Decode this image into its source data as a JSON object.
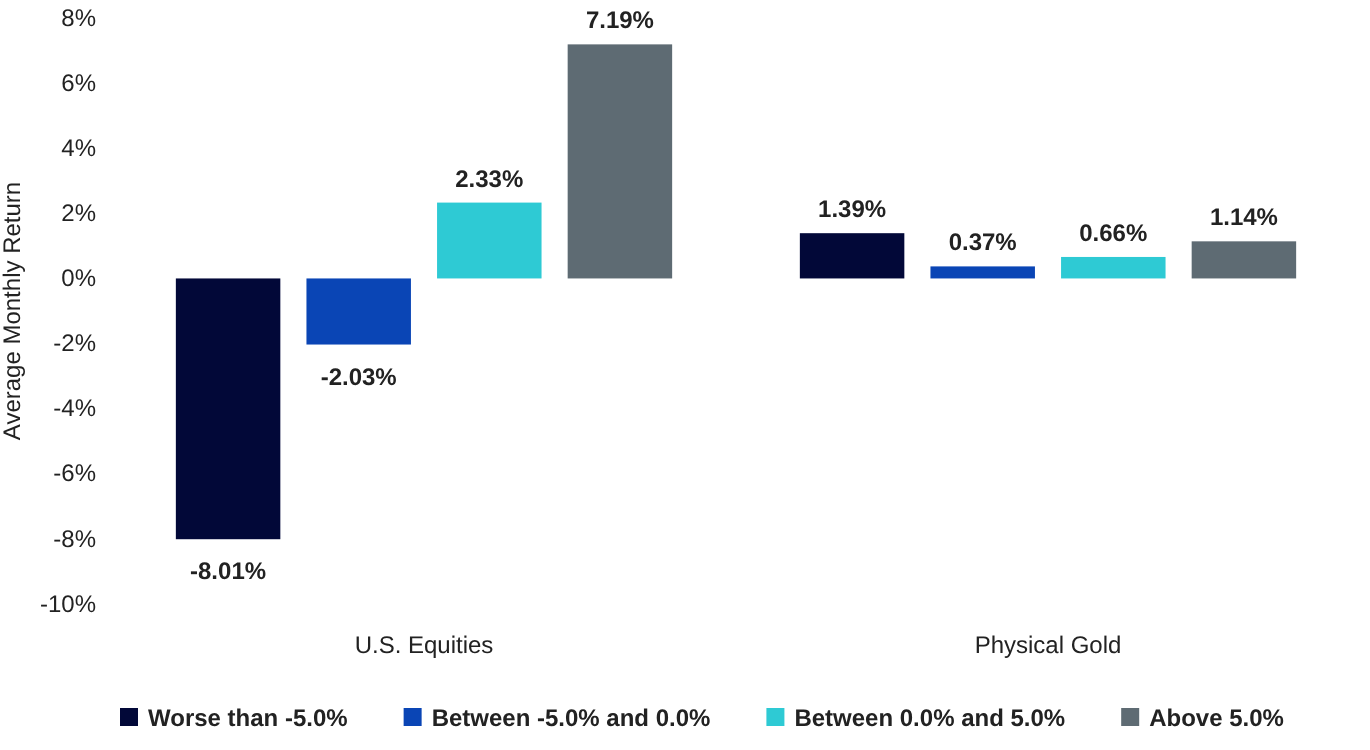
{
  "chart_data": {
    "type": "bar",
    "ylabel": "Average Monthly Return",
    "categories": [
      "U.S. Equities",
      "Physical Gold"
    ],
    "series": [
      {
        "name": "Worse than -5.0%",
        "color": "#020838",
        "values": [
          -8.01,
          1.39
        ],
        "value_labels": [
          "-8.01%",
          "1.39%"
        ]
      },
      {
        "name": "Between -5.0% and 0.0%",
        "color": "#0a45b5",
        "values": [
          -2.03,
          0.37
        ],
        "value_labels": [
          "-2.03%",
          "0.37%"
        ]
      },
      {
        "name": "Between 0.0% and 5.0%",
        "color": "#2ecad4",
        "values": [
          2.33,
          0.66
        ],
        "value_labels": [
          "2.33%",
          "0.66%"
        ]
      },
      {
        "name": "Above 5.0%",
        "color": "#5e6b73",
        "values": [
          7.19,
          1.14
        ],
        "value_labels": [
          "7.19%",
          "1.14%"
        ]
      }
    ],
    "ylim": [
      -10,
      8
    ],
    "yticks": [
      {
        "value": -10,
        "label": "-10%"
      },
      {
        "value": -8,
        "label": "-8%"
      },
      {
        "value": -6,
        "label": "-6%"
      },
      {
        "value": -4,
        "label": "-4%"
      },
      {
        "value": -2,
        "label": "-2%"
      },
      {
        "value": 0,
        "label": "0%"
      },
      {
        "value": 2,
        "label": "2%"
      },
      {
        "value": 4,
        "label": "4%"
      },
      {
        "value": 6,
        "label": "6%"
      },
      {
        "value": 8,
        "label": "8%"
      }
    ],
    "grid": false,
    "legend": "bottom"
  }
}
